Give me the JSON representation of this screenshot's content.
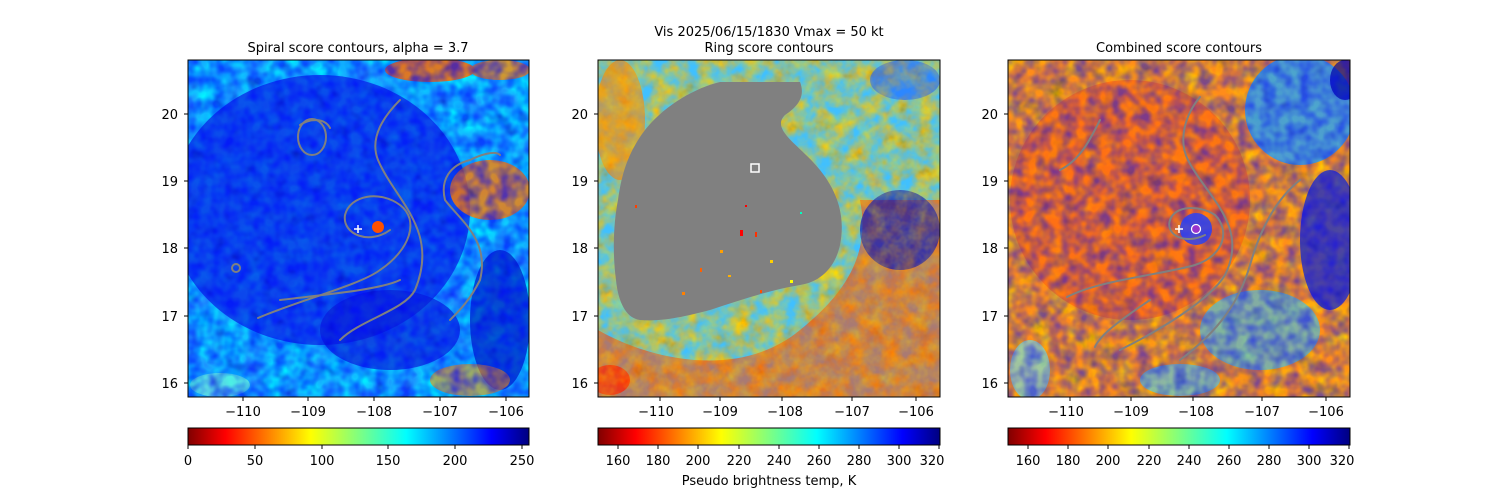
{
  "figure": {
    "suptitle_line1": "Vis  2025/06/15/1830    Vmax = 50 kt",
    "colorbar_label": "Pseudo brightness temp, K",
    "colors": {
      "background": "#ffffff",
      "contour": "#808080",
      "mask": "#808080",
      "marker": "#ffffff",
      "center_marker": "#9933cc"
    }
  },
  "chart_data": [
    {
      "type": "heatmap",
      "title": "Spiral score contours, alpha =  3.7",
      "colormap": "jet_r",
      "xlim": [
        -111.1,
        -105.6
      ],
      "ylim": [
        15.8,
        20.8
      ],
      "xticks": [
        -110,
        -109,
        -108,
        -107,
        -106
      ],
      "xtick_labels": [
        "−110",
        "−109",
        "−108",
        "−107",
        "−106"
      ],
      "yticks": [
        16,
        17,
        18,
        19,
        20
      ],
      "ytick_labels": [
        "16",
        "17",
        "18",
        "19",
        "20"
      ],
      "colorbar": {
        "range": [
          0,
          255
        ],
        "ticks": [
          "0",
          "50",
          "100",
          "150",
          "200",
          "250"
        ]
      },
      "markers": [
        {
          "shape": "plus",
          "x": -108.3,
          "y": 18.28
        }
      ]
    },
    {
      "type": "heatmap",
      "title": "Ring score contours",
      "colormap": "jet_r",
      "xlim": [
        -111.1,
        -105.6
      ],
      "ylim": [
        15.8,
        20.8
      ],
      "xticks": [
        -110,
        -109,
        -108,
        -107,
        -106
      ],
      "xtick_labels": [
        "−110",
        "−109",
        "−108",
        "−107",
        "−106"
      ],
      "yticks": [
        16,
        17,
        18,
        19,
        20
      ],
      "ytick_labels": [
        "16",
        "17",
        "18",
        "19",
        "20"
      ],
      "colorbar": {
        "range": [
          150,
          320
        ],
        "ticks": [
          "160",
          "180",
          "200",
          "220",
          "240",
          "260",
          "280",
          "300",
          "320"
        ]
      },
      "markers": [
        {
          "shape": "square",
          "x": -108.55,
          "y": 19.2
        }
      ]
    },
    {
      "type": "heatmap",
      "title": "Combined score contours",
      "colormap": "jet_r",
      "xlim": [
        -111.1,
        -105.6
      ],
      "ylim": [
        15.8,
        20.8
      ],
      "xticks": [
        -110,
        -109,
        -108,
        -107,
        -106
      ],
      "xtick_labels": [
        "−110",
        "−109",
        "−108",
        "−107",
        "−106"
      ],
      "yticks": [
        16,
        17,
        18,
        19,
        20
      ],
      "ytick_labels": [
        "16",
        "17",
        "18",
        "19",
        "20"
      ],
      "colorbar": {
        "range": [
          150,
          320
        ],
        "ticks": [
          "160",
          "180",
          "200",
          "220",
          "240",
          "260",
          "280",
          "300",
          "320"
        ]
      },
      "markers": [
        {
          "shape": "plus",
          "x": -108.3,
          "y": 18.28
        },
        {
          "shape": "circle",
          "x": -108.0,
          "y": 18.28
        }
      ]
    }
  ]
}
